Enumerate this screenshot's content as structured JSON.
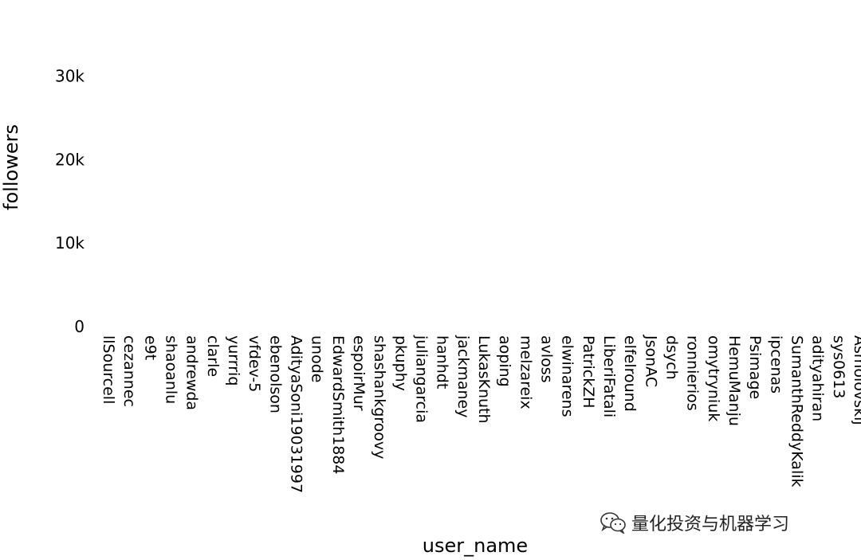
{
  "chart_data": {
    "type": "bar",
    "xlabel": "user_name",
    "ylabel": "followers",
    "ylim": [
      0,
      35000
    ],
    "yticks": [
      0,
      10000,
      20000,
      30000
    ],
    "ytick_labels": [
      "0",
      "10k",
      "20k",
      "30k"
    ],
    "grid": false,
    "categories": [
      "llSourcell",
      "cezannec",
      "e9t",
      "shaoanlu",
      "andrewda",
      "clarle",
      "yurrriq",
      "vfdev-5",
      "ebenolson",
      "AdityaSoni19031997",
      "unode",
      "EdwardSmith1884",
      "espoirMur",
      "shashankgroovy",
      "pkuphy",
      "juliangarcia",
      "hanhdt",
      "jackmaney",
      "LukasKnuth",
      "aoping",
      "melzareix",
      "avloss",
      "elwinarens",
      "PatrickZH",
      "LiberiFatali",
      "elfelround",
      "JsonAC",
      "dsych",
      "ronnierios",
      "omytryniuk",
      "HemuManju",
      "Psimage",
      "ipcenas",
      "SumanthReddyKalik",
      "adityahiran",
      "sys0613",
      "Asmolovskij"
    ],
    "values": [
      0,
      0,
      0,
      0,
      0,
      0,
      0,
      0,
      0,
      0,
      0,
      0,
      0,
      0,
      0,
      0,
      0,
      0,
      0,
      0,
      0,
      0,
      0,
      0,
      0,
      0,
      0,
      0,
      0,
      0,
      0,
      0,
      0,
      0,
      0,
      0,
      0
    ],
    "bar_color": "#636efa"
  },
  "watermark": {
    "text": "量化投资与机器学习",
    "icon": "wechat-icon"
  }
}
